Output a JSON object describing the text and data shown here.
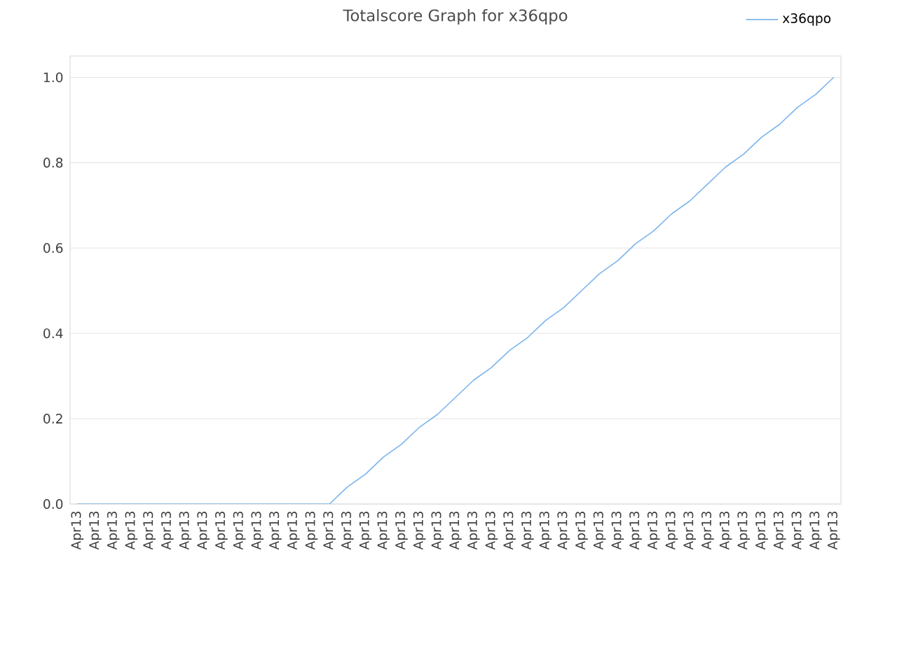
{
  "chart_data": {
    "type": "line",
    "title": "Totalscore Graph for x36qpo",
    "categories": [
      "Apr13",
      "Apr13",
      "Apr13",
      "Apr13",
      "Apr13",
      "Apr13",
      "Apr13",
      "Apr13",
      "Apr13",
      "Apr13",
      "Apr13",
      "Apr13",
      "Apr13",
      "Apr13",
      "Apr13",
      "Apr13",
      "Apr13",
      "Apr13",
      "Apr13",
      "Apr13",
      "Apr13",
      "Apr13",
      "Apr13",
      "Apr13",
      "Apr13",
      "Apr13",
      "Apr13",
      "Apr13",
      "Apr13",
      "Apr13",
      "Apr13",
      "Apr13",
      "Apr13",
      "Apr13",
      "Apr13",
      "Apr13",
      "Apr13",
      "Apr13",
      "Apr13",
      "Apr13",
      "Apr13",
      "Apr13",
      "Apr13"
    ],
    "series": [
      {
        "name": "x36qpo",
        "color": "#7cb5ec",
        "values": [
          0,
          0,
          0,
          0,
          0,
          0,
          0,
          0,
          0,
          0,
          0,
          0,
          0,
          0,
          0,
          0.04,
          0.07,
          0.11,
          0.14,
          0.18,
          0.21,
          0.25,
          0.29,
          0.32,
          0.36,
          0.39,
          0.43,
          0.46,
          0.5,
          0.54,
          0.57,
          0.61,
          0.64,
          0.68,
          0.71,
          0.75,
          0.79,
          0.82,
          0.86,
          0.89,
          0.93,
          0.96,
          1.0
        ]
      }
    ],
    "ylim": [
      0,
      1.05
    ],
    "yticks": [
      {
        "value": 0,
        "label": "0.0"
      },
      {
        "value": 0.2,
        "label": "0.2"
      },
      {
        "value": 0.4,
        "label": "0.4"
      },
      {
        "value": 0.6,
        "label": "0.6"
      },
      {
        "value": 0.8,
        "label": "0.8"
      },
      {
        "value": 1.0,
        "label": "1.0"
      }
    ],
    "grid": "y",
    "legend": "top right",
    "marker": "none",
    "line_style": "solid"
  }
}
